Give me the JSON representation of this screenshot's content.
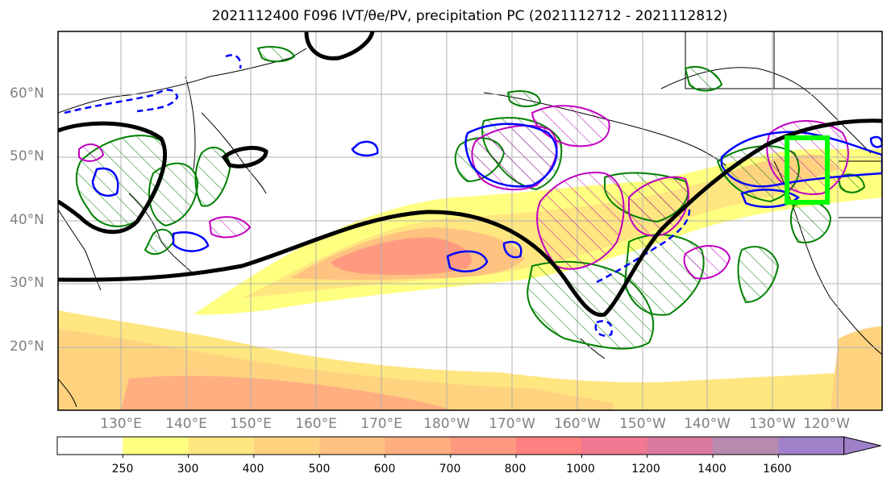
{
  "title": "2021112400 F096 IVT/θe/PV, precipitation PC (2021112712 - 2021112812)",
  "lat_labels": [
    "60°N",
    "50°N",
    "40°N",
    "30°N",
    "20°N"
  ],
  "lon_labels": [
    "130°E",
    "140°E",
    "150°E",
    "160°E",
    "170°E",
    "180°W",
    "170°W",
    "160°W",
    "150°W",
    "140°W",
    "130°W",
    "120°W"
  ],
  "colorbar": {
    "levels": [
      "250",
      "300",
      "400",
      "500",
      "600",
      "700",
      "800",
      "1000",
      "1200",
      "1400",
      "1600"
    ],
    "colors": [
      "#ffffff",
      "#ffff80",
      "#ffe680",
      "#ffd280",
      "#ffc280",
      "#ffae80",
      "#ff9a80",
      "#ff8080",
      "#f07890",
      "#d87aa0",
      "#b88ab0",
      "#a080c8"
    ]
  },
  "colors": {
    "ivt_fill": "#ffcc66",
    "theta_e": "#000000",
    "pv_positive": "#0000ff",
    "precip_pc": "#008000",
    "pv_magenta": "#c000c0",
    "target_box": "#00ff00"
  }
}
